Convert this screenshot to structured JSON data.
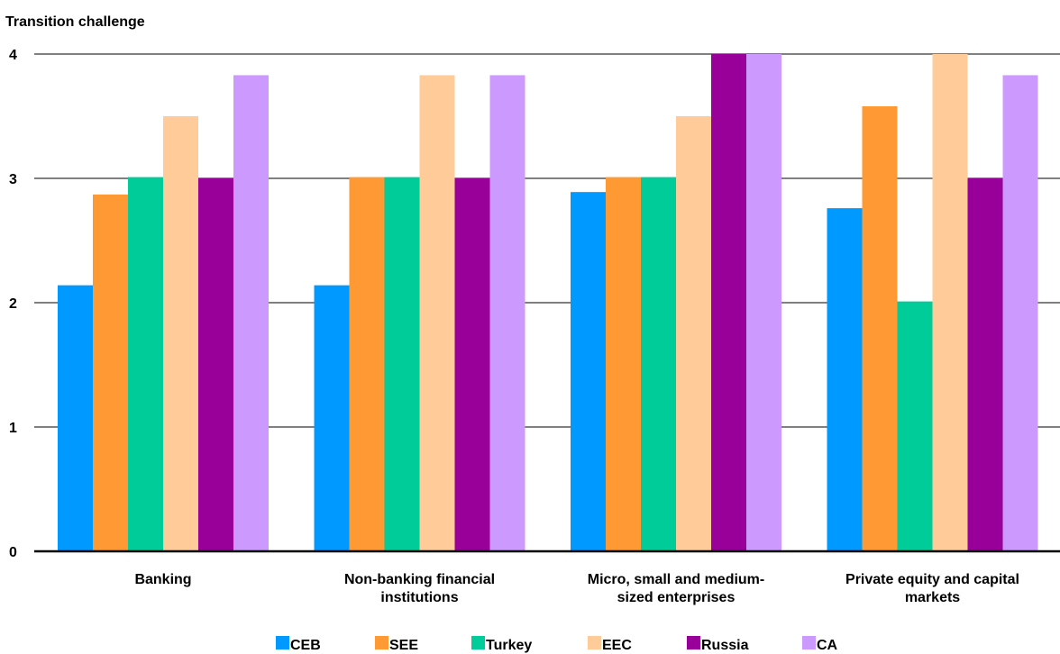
{
  "chart_data": {
    "type": "bar",
    "ylabel": "Transition challenge",
    "xlabel": "",
    "ylim": [
      0,
      4
    ],
    "yticks": [
      "0",
      "1",
      "2",
      "3",
      "4"
    ],
    "categories": [
      [
        "Banking"
      ],
      [
        "Non-banking financial",
        "institutions"
      ],
      [
        "Micro, small and medium-",
        "sized enterprises"
      ],
      [
        "Private equity and capital",
        "markets"
      ]
    ],
    "series": [
      {
        "name": "CEB",
        "color": "#0099ff",
        "values": [
          2.14,
          2.14,
          2.89,
          2.76
        ]
      },
      {
        "name": "SEE",
        "color": "#ff9933",
        "values": [
          2.87,
          3.01,
          3.01,
          3.58
        ]
      },
      {
        "name": "Turkey",
        "color": "#00cc99",
        "values": [
          3.01,
          3.01,
          3.01,
          2.01
        ]
      },
      {
        "name": "EEC",
        "color": "#ffcc99",
        "values": [
          3.5,
          3.83,
          3.5,
          4.0
        ]
      },
      {
        "name": "Russia",
        "color": "#990099",
        "values": [
          3.0,
          3.0,
          4.0,
          3.0
        ]
      },
      {
        "name": "CA",
        "color": "#cc99ff",
        "values": [
          3.83,
          3.83,
          4.0,
          3.83
        ]
      }
    ],
    "grid": true,
    "legend_position": "bottom"
  }
}
